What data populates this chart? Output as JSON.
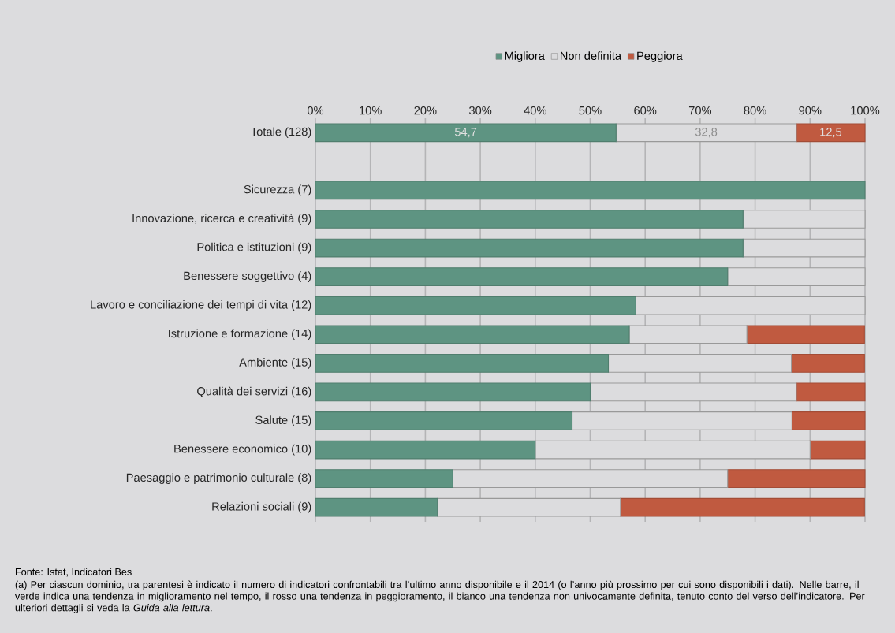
{
  "chart_data": {
    "type": "bar",
    "orientation": "horizontal",
    "stacked": true,
    "categories": [
      "Totale (128)",
      null,
      "Sicurezza (7)",
      "Innovazione, ricerca e creatività (9)",
      "Politica e istituzioni (9)",
      "Benessere soggettivo (4)",
      "Lavoro e conciliazione dei tempi di vita (12)",
      "Istruzione e formazione (14)",
      "Ambiente (15)",
      "Qualità dei servizi (16)",
      "Salute (15)",
      "Benessere economico (10)",
      "Paesaggio e patrimonio culturale (8)",
      "Relazioni sociali (9)"
    ],
    "series": [
      {
        "name": "Migliora",
        "color": "#5e9482",
        "values": [
          54.7,
          null,
          100,
          77.8,
          77.8,
          75,
          58.3,
          57.1,
          53.3,
          50,
          46.7,
          40,
          25,
          22.2
        ],
        "value_labels": [
          "54,7",
          null,
          null,
          null,
          null,
          null,
          null,
          null,
          null,
          null,
          null,
          null,
          null,
          null
        ]
      },
      {
        "name": "Non definita",
        "color": "#dcdcde",
        "values": [
          32.8,
          null,
          0,
          22.2,
          22.2,
          25,
          41.7,
          21.4,
          33.3,
          37.5,
          40,
          50,
          50,
          33.3
        ],
        "value_labels": [
          "32,8",
          null,
          null,
          null,
          null,
          null,
          null,
          null,
          null,
          null,
          null,
          null,
          null,
          null
        ]
      },
      {
        "name": "Peggiora",
        "color": "#c05a40",
        "values": [
          12.5,
          null,
          0,
          0,
          0,
          0,
          0,
          21.4,
          13.3,
          12.5,
          13.3,
          10,
          25,
          44.4
        ],
        "value_labels": [
          "12,5",
          null,
          null,
          null,
          null,
          null,
          null,
          null,
          null,
          null,
          null,
          null,
          null,
          null
        ]
      }
    ],
    "xlim": [
      0,
      100
    ],
    "xticks": [
      {
        "value": 0,
        "label": "0%"
      },
      {
        "value": 10,
        "label": "10%"
      },
      {
        "value": 20,
        "label": "20%"
      },
      {
        "value": 30,
        "label": "30%"
      },
      {
        "value": 40,
        "label": "40%"
      },
      {
        "value": 50,
        "label": "50%"
      },
      {
        "value": 60,
        "label": "60%"
      },
      {
        "value": 70,
        "label": "70%"
      },
      {
        "value": 80,
        "label": "80%"
      },
      {
        "value": 90,
        "label": "90%"
      },
      {
        "value": 100,
        "label": "100%"
      }
    ],
    "grid": "x",
    "legend": "top",
    "annotations": [
      "Fonte: Istat, Indicatori Bes",
      "(a) Per ciascun dominio, tra parentesi è indicato il numero di indicatori confrontabili tra l’ultimo anno disponibile e il 2014 (o l’anno più prossimo per cui sono disponibili i dati). Nelle barre, il verde indica una tendenza in miglioramento nel tempo, il rosso una tendenza in peggioramento, il bianco una tendenza non univocamente definita, tenuto conto del verso dell’indicatore. Per ulteriori dettagli si veda la *Guida alla lettura*."
    ]
  }
}
